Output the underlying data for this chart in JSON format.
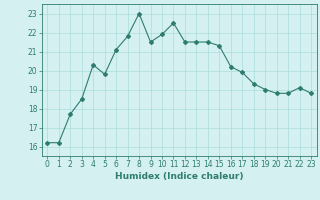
{
  "x": [
    0,
    1,
    2,
    3,
    4,
    5,
    6,
    7,
    8,
    9,
    10,
    11,
    12,
    13,
    14,
    15,
    16,
    17,
    18,
    19,
    20,
    21,
    22,
    23
  ],
  "y": [
    16.2,
    16.2,
    17.7,
    18.5,
    20.3,
    19.8,
    21.1,
    21.8,
    23.0,
    21.5,
    21.9,
    22.5,
    21.5,
    21.5,
    21.5,
    21.3,
    20.2,
    19.9,
    19.3,
    19.0,
    18.8,
    18.8,
    19.1,
    18.8
  ],
  "xlabel": "Humidex (Indice chaleur)",
  "xlim": [
    -0.5,
    23.5
  ],
  "ylim": [
    15.5,
    23.5
  ],
  "yticks": [
    16,
    17,
    18,
    19,
    20,
    21,
    22,
    23
  ],
  "xticks": [
    0,
    1,
    2,
    3,
    4,
    5,
    6,
    7,
    8,
    9,
    10,
    11,
    12,
    13,
    14,
    15,
    16,
    17,
    18,
    19,
    20,
    21,
    22,
    23
  ],
  "line_color": "#2e7d6e",
  "marker": "D",
  "marker_size": 2,
  "bg_color": "#d4f0f0",
  "grid_color": "#aadddd",
  "label_fontsize": 6.5,
  "tick_fontsize": 5.5
}
